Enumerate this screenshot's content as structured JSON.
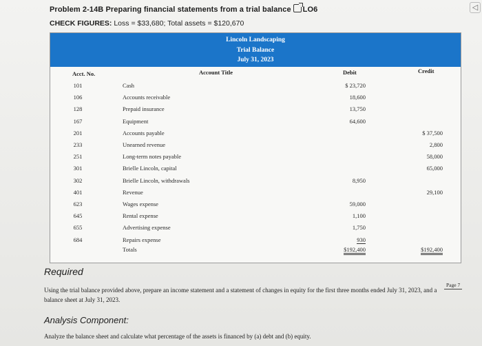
{
  "header": {
    "problem_title": "Problem 2-14B Preparing financial statements from a trial balance",
    "lo_label": "LO6",
    "check_label": "CHECK FIGURES:",
    "check_values": "Loss = $33,680; Total assets = $120,670"
  },
  "trial_balance": {
    "company": "Lincoln Landscaping",
    "statement": "Trial Balance",
    "date": "July 31, 2023",
    "col_acct": "Acct. No.",
    "col_title": "Account Title",
    "col_debit": "Debit",
    "col_credit": "Credit",
    "rows": [
      {
        "acct": "101",
        "title": "Cash",
        "debit": "$ 23,720",
        "credit": ""
      },
      {
        "acct": "106",
        "title": "Accounts receivable",
        "debit": "18,600",
        "credit": ""
      },
      {
        "acct": "128",
        "title": "Prepaid insurance",
        "debit": "13,750",
        "credit": ""
      },
      {
        "acct": "167",
        "title": "Equipment",
        "debit": "64,600",
        "credit": ""
      },
      {
        "acct": "201",
        "title": "Accounts payable",
        "debit": "",
        "credit": "$ 37,500"
      },
      {
        "acct": "233",
        "title": "Unearned revenue",
        "debit": "",
        "credit": "2,800"
      },
      {
        "acct": "251",
        "title": "Long-term notes payable",
        "debit": "",
        "credit": "58,000"
      },
      {
        "acct": "301",
        "title": "Brielle Lincoln, capital",
        "debit": "",
        "credit": "65,000"
      },
      {
        "acct": "302",
        "title": "Brielle Lincoln, withdrawals",
        "debit": "8,950",
        "credit": ""
      },
      {
        "acct": "401",
        "title": "Revenue",
        "debit": "",
        "credit": "29,100"
      },
      {
        "acct": "623",
        "title": "Wages expense",
        "debit": "59,000",
        "credit": ""
      },
      {
        "acct": "645",
        "title": "Rental expense",
        "debit": "1,100",
        "credit": ""
      },
      {
        "acct": "655",
        "title": "Advertising expense",
        "debit": "1,750",
        "credit": ""
      },
      {
        "acct": "684",
        "title": "Repairs expense",
        "debit": "930",
        "credit": ""
      }
    ],
    "totals": {
      "title": "Totals",
      "debit": "$192,400",
      "credit": "$192,400"
    }
  },
  "required": {
    "heading": "Required",
    "text": "Using the trial balance provided above, prepare an income statement and a statement of changes in equity for the first three months ended July 31, 2023, and a balance sheet at July 31, 2023.",
    "page_label": "Page 7"
  },
  "analysis": {
    "heading": "Analysis Component:",
    "text": "Analyze the balance sheet and calculate what percentage of the assets is financed by (a) debt and (b) equity."
  },
  "icons": {
    "external_link": "external-link-icon",
    "corner": "arrow-icon"
  }
}
